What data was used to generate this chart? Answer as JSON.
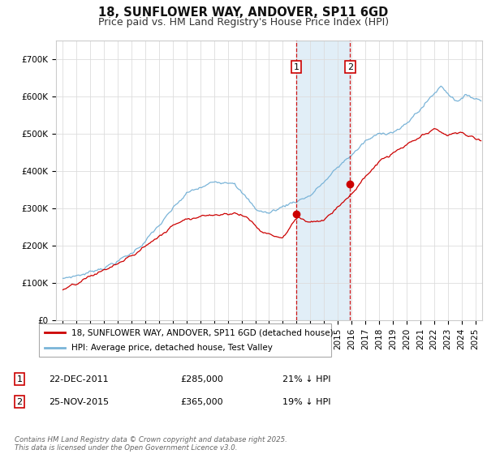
{
  "title1": "18, SUNFLOWER WAY, ANDOVER, SP11 6GD",
  "title2": "Price paid vs. HM Land Registry's House Price Index (HPI)",
  "xlim_start": 1994.5,
  "xlim_end": 2025.5,
  "ylim": [
    0,
    750000
  ],
  "yticks": [
    0,
    100000,
    200000,
    300000,
    400000,
    500000,
    600000,
    700000
  ],
  "ytick_labels": [
    "£0",
    "£100K",
    "£200K",
    "£300K",
    "£400K",
    "£500K",
    "£600K",
    "£700K"
  ],
  "hpi_color": "#7ab4d8",
  "price_color": "#cc0000",
  "sale1_x": 2011.97,
  "sale1_y": 285000,
  "sale2_x": 2015.9,
  "sale2_y": 365000,
  "shade_color": "#daeaf5",
  "legend_label_price": "18, SUNFLOWER WAY, ANDOVER, SP11 6GD (detached house)",
  "legend_label_hpi": "HPI: Average price, detached house, Test Valley",
  "note1_label": "1",
  "note1_date": "22-DEC-2011",
  "note1_price": "£285,000",
  "note1_hpi": "21% ↓ HPI",
  "note2_label": "2",
  "note2_date": "25-NOV-2015",
  "note2_price": "£365,000",
  "note2_hpi": "19% ↓ HPI",
  "footer": "Contains HM Land Registry data © Crown copyright and database right 2025.\nThis data is licensed under the Open Government Licence v3.0.",
  "title_fontsize": 10.5,
  "subtitle_fontsize": 9,
  "tick_fontsize": 7.5,
  "background_color": "#ffffff",
  "grid_color": "#dddddd"
}
